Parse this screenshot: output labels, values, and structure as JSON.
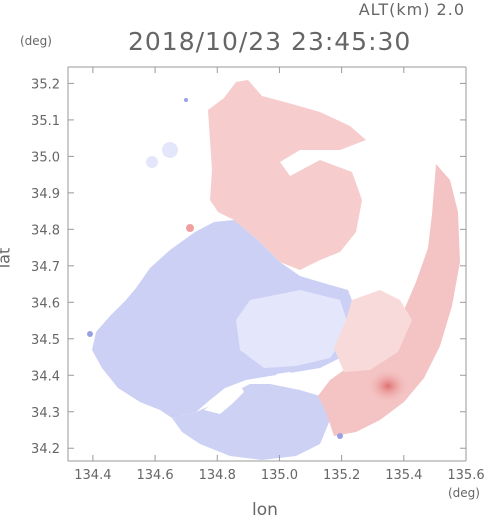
{
  "header": {
    "altitude": "ALT(km)  2.0",
    "timestamp": "2018/10/23  23:45:30"
  },
  "axes": {
    "x_unit": "(deg)",
    "y_unit": "(deg)",
    "x_label": "lon",
    "y_label": "lat",
    "x_ticks": [
      "134.4",
      "134.6",
      "134.8",
      "135.0",
      "135.2",
      "135.4",
      "135.6"
    ],
    "y_ticks": [
      "35.2",
      "35.1",
      "35.0",
      "34.9",
      "34.8",
      "34.7",
      "34.6",
      "34.5",
      "34.4",
      "34.3",
      "34.2"
    ]
  },
  "chart_data": {
    "type": "heatmap",
    "xlim": [
      134.32,
      135.6
    ],
    "ylim": [
      34.165,
      35.245
    ],
    "x_ticks": [
      134.4,
      134.6,
      134.8,
      135.0,
      135.2,
      135.4,
      135.6
    ],
    "y_ticks": [
      35.2,
      35.1,
      35.0,
      34.9,
      34.8,
      34.7,
      34.6,
      34.5,
      34.4,
      34.3,
      34.2
    ],
    "radar_center": [
      135.04,
      34.66
    ],
    "colors": {
      "negative": "#c8ccf4",
      "positive": "#f6c8c8",
      "strong_positive": "#e07070",
      "axis": "#999999"
    }
  }
}
